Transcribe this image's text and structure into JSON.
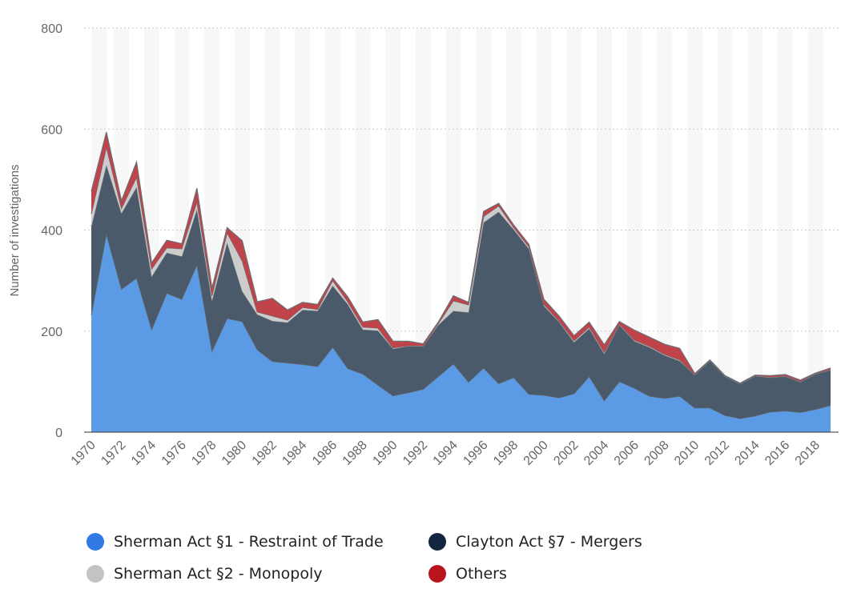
{
  "chart_data": {
    "type": "area",
    "stacked": true,
    "title": "",
    "xlabel": "",
    "ylabel": "Number of investigations",
    "ylim": [
      0,
      800
    ],
    "yticks": [
      0,
      200,
      400,
      600,
      800
    ],
    "x": [
      1970,
      1971,
      1972,
      1973,
      1974,
      1975,
      1976,
      1977,
      1978,
      1979,
      1980,
      1981,
      1982,
      1983,
      1984,
      1985,
      1986,
      1987,
      1988,
      1989,
      1990,
      1991,
      1992,
      1993,
      1994,
      1995,
      1996,
      1997,
      1998,
      1999,
      2000,
      2001,
      2002,
      2003,
      2004,
      2005,
      2006,
      2007,
      2008,
      2009,
      2010,
      2011,
      2012,
      2013,
      2014,
      2015,
      2016,
      2017,
      2018,
      2019
    ],
    "xtick_labels": [
      "1970",
      "1972",
      "1974",
      "1976",
      "1978",
      "1980",
      "1982",
      "1984",
      "1986",
      "1988",
      "1990",
      "1992",
      "1994",
      "1996",
      "1998",
      "2000",
      "2002",
      "2004",
      "2006",
      "2008",
      "2010",
      "2012",
      "2014",
      "2016",
      "2018"
    ],
    "series": [
      {
        "name": "Sherman Act §1 - Restraint of Trade",
        "color": "#5b9be6",
        "values": [
          232,
          392,
          283,
          305,
          203,
          275,
          263,
          331,
          160,
          225,
          219,
          163,
          140,
          137,
          134,
          130,
          168,
          126,
          115,
          93,
          72,
          78,
          85,
          110,
          135,
          99,
          127,
          96,
          108,
          75,
          73,
          68,
          76,
          110,
          62,
          100,
          87,
          71,
          67,
          71,
          48,
          48,
          33,
          27,
          32,
          40,
          42,
          39,
          45,
          53
        ]
      },
      {
        "name": "Clayton Act §7 - Mergers",
        "color": "#4a5a6a",
        "values": [
          175,
          137,
          150,
          180,
          105,
          80,
          85,
          110,
          100,
          150,
          60,
          70,
          80,
          80,
          108,
          110,
          122,
          127,
          88,
          108,
          93,
          92,
          85,
          102,
          105,
          138,
          288,
          340,
          293,
          288,
          177,
          150,
          102,
          95,
          93,
          112,
          93,
          97,
          85,
          70,
          65,
          93,
          77,
          68,
          79,
          68,
          68,
          60,
          70,
          70
        ]
      },
      {
        "name": "Sherman Act §2 - Monopoly",
        "color": "#cccccc",
        "values": [
          25,
          35,
          10,
          20,
          15,
          10,
          15,
          15,
          10,
          20,
          60,
          5,
          10,
          5,
          5,
          3,
          10,
          5,
          5,
          5,
          2,
          1,
          1,
          3,
          20,
          15,
          12,
          12,
          4,
          4,
          3,
          2,
          3,
          3,
          3,
          2,
          2,
          2,
          2,
          2,
          1,
          1,
          1,
          1,
          1,
          1,
          1,
          1,
          1,
          1
        ]
      },
      {
        "name": "Others",
        "color": "#c0434a",
        "values": [
          45,
          30,
          15,
          30,
          12,
          15,
          10,
          27,
          15,
          10,
          40,
          20,
          35,
          20,
          10,
          10,
          5,
          10,
          10,
          17,
          13,
          9,
          4,
          3,
          10,
          5,
          10,
          5,
          5,
          5,
          10,
          10,
          10,
          10,
          15,
          5,
          20,
          18,
          20,
          23,
          2,
          1,
          1,
          1,
          1,
          3,
          3,
          3,
          1,
          3
        ]
      }
    ],
    "legend": {
      "position": "bottom",
      "items": [
        {
          "label": "Sherman Act §1 - Restraint of Trade",
          "color": "#2f7ae5"
        },
        {
          "label": "Clayton Act §7 - Mergers",
          "color": "#13263f"
        },
        {
          "label": "Sherman Act §2 - Monopoly",
          "color": "#c3c3c3"
        },
        {
          "label": "Others",
          "color": "#b7141d"
        }
      ]
    },
    "grid": true
  }
}
